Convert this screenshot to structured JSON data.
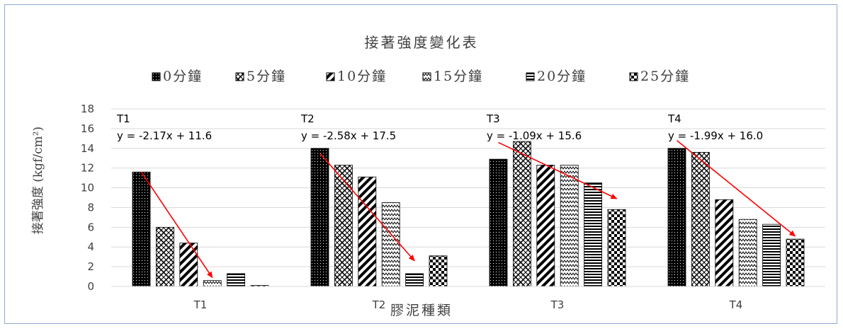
{
  "chart_data": {
    "type": "bar",
    "title": "接著強度變化表",
    "xlabel": "膠泥種類",
    "ylabel": "接著強度 (kgf/cm²)",
    "ylim": [
      0,
      18
    ],
    "yticks": [
      "0",
      "2",
      "4",
      "6",
      "8",
      "10",
      "12",
      "14",
      "16",
      "18"
    ],
    "grid": true,
    "legend_position": "top",
    "categories": [
      "T1",
      "T2",
      "T3",
      "T4"
    ],
    "series": [
      {
        "name": "0分鐘",
        "pattern": "dense-dots",
        "values": [
          11.6,
          14.0,
          12.9,
          14.0
        ]
      },
      {
        "name": "5分鐘",
        "pattern": "diamond-lattice",
        "values": [
          6.0,
          12.3,
          14.7,
          13.6
        ]
      },
      {
        "name": "10分鐘",
        "pattern": "diagonal-stripes",
        "values": [
          4.4,
          11.1,
          12.3,
          8.8
        ]
      },
      {
        "name": "15分鐘",
        "pattern": "zigzag",
        "values": [
          0.6,
          8.5,
          12.3,
          6.8
        ]
      },
      {
        "name": "20分鐘",
        "pattern": "horizontal-stripes",
        "values": [
          1.3,
          1.3,
          10.5,
          6.3
        ]
      },
      {
        "name": "25分鐘",
        "pattern": "checkerboard",
        "values": [
          0.1,
          3.1,
          7.8,
          4.8
        ]
      }
    ],
    "annotations": [
      {
        "group": "T1",
        "name": "T1",
        "equation": "y = -2.17x + 11.6",
        "trend_from": [
          0,
          11.6
        ],
        "trend_to": [
          3,
          0.9
        ]
      },
      {
        "group": "T2",
        "name": "T2",
        "equation": "y = -2.58x + 17.5",
        "trend_from": [
          0,
          13.5
        ],
        "trend_to": [
          4,
          2.6
        ]
      },
      {
        "group": "T3",
        "name": "T3",
        "equation": "y = -1.09x + 15.6",
        "trend_from": [
          0,
          14.6
        ],
        "trend_to": [
          5,
          8.9
        ]
      },
      {
        "group": "T4",
        "name": "T4",
        "equation": "y = -1.99x + 16.0",
        "trend_from": [
          0,
          14.8
        ],
        "trend_to": [
          5,
          5.1
        ]
      }
    ],
    "trend_color": "#ff0000",
    "bar_color": "#000000"
  }
}
